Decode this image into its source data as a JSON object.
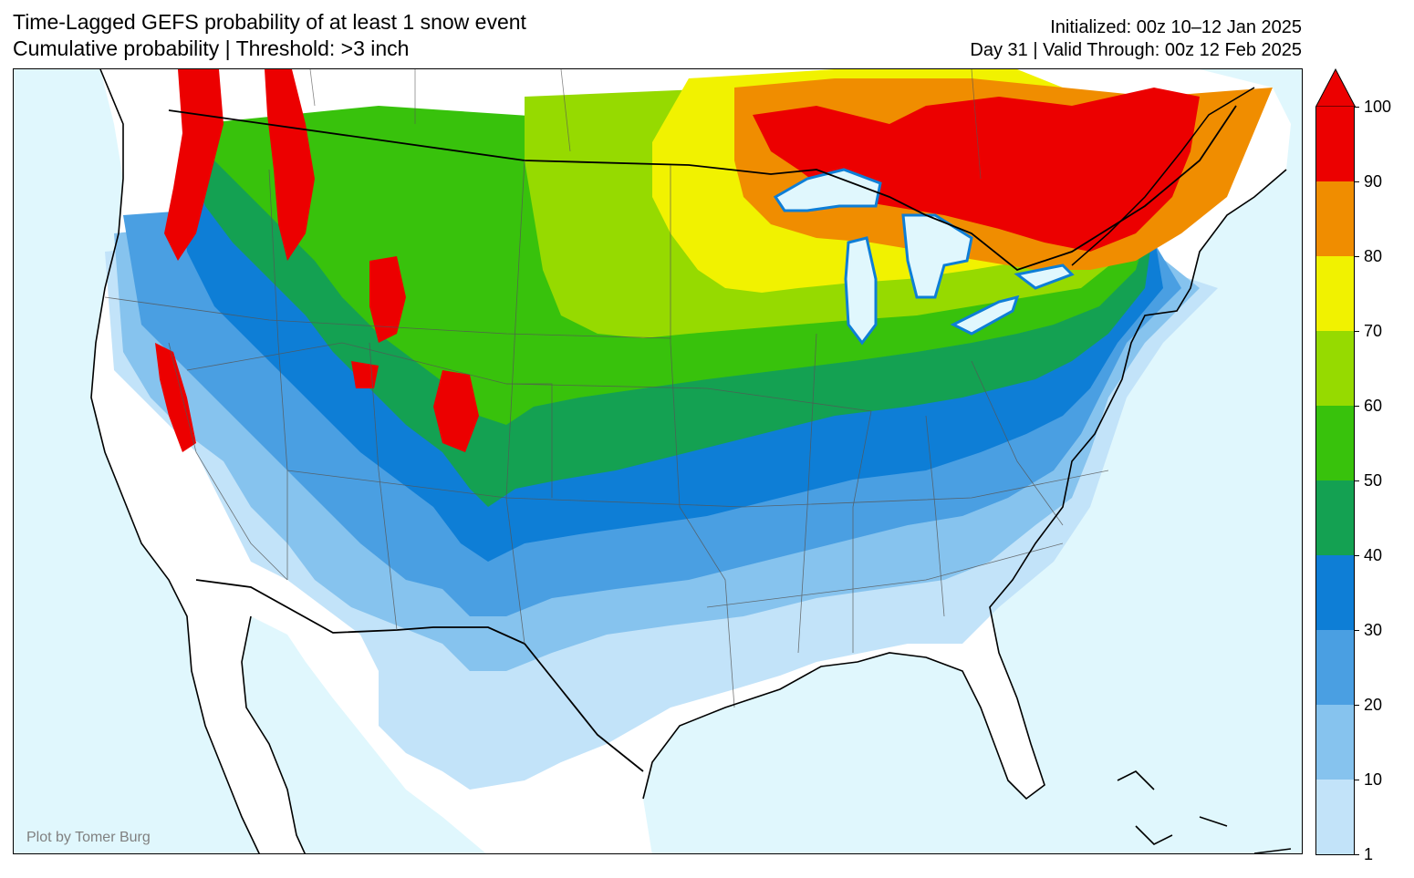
{
  "title": {
    "line1": "Time-Lagged GEFS probability of at least 1 snow event",
    "line2": "Cumulative probability | Threshold: >3 inch"
  },
  "meta": {
    "initialized": "Initialized: 00z 10–12 Jan 2025",
    "valid": "Day 31 | Valid Through: 00z 12 Feb 2025"
  },
  "credit": "Plot by Tomer Burg",
  "colors": {
    "ocean": "#e0f7fd",
    "land": "#ffffff",
    "band_1_10": "#c2e3f9",
    "band_10_20": "#86c3ee",
    "band_20_30": "#4a9fe2",
    "band_30_40": "#0e7ed6",
    "band_40_50": "#14a152",
    "band_50_60": "#38c20c",
    "band_60_70": "#96da00",
    "band_70_80": "#f1f200",
    "band_80_90": "#f08d00",
    "band_90_100": "#ec0000"
  },
  "colorbar": {
    "ticks": [
      "100",
      "90",
      "80",
      "70",
      "60",
      "50",
      "40",
      "30",
      "20",
      "10",
      "1"
    ],
    "bands": [
      {
        "range": "90-100",
        "color": "#ec0000"
      },
      {
        "range": "80-90",
        "color": "#f08d00"
      },
      {
        "range": "70-80",
        "color": "#f1f200"
      },
      {
        "range": "60-70",
        "color": "#96da00"
      },
      {
        "range": "50-60",
        "color": "#38c20c"
      },
      {
        "range": "40-50",
        "color": "#14a152"
      },
      {
        "range": "30-40",
        "color": "#0e7ed6"
      },
      {
        "range": "20-30",
        "color": "#4a9fe2"
      },
      {
        "range": "10-20",
        "color": "#86c3ee"
      },
      {
        "range": "1-10",
        "color": "#c2e3f9"
      }
    ],
    "extend": "max"
  }
}
